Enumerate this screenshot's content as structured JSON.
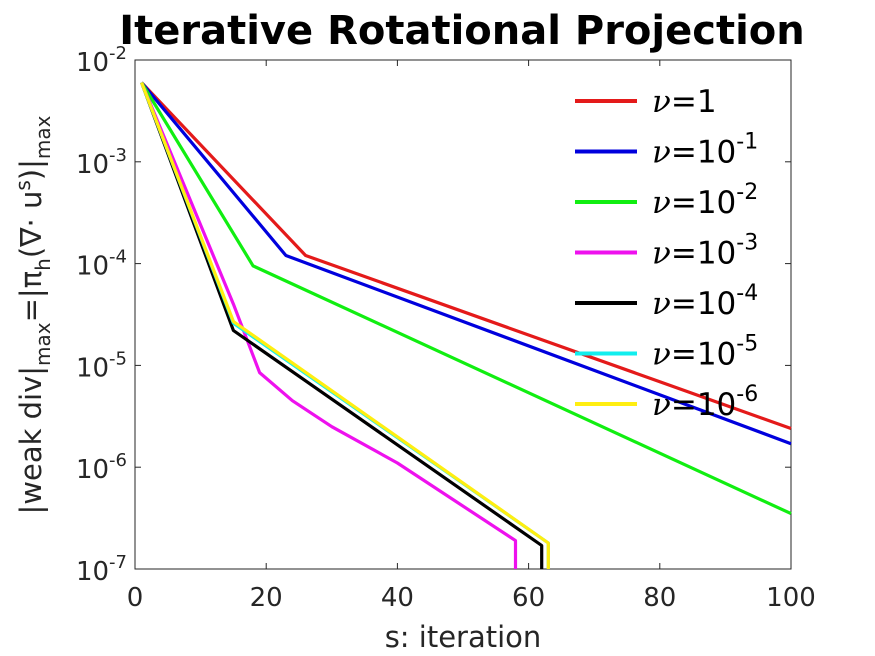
{
  "chart_data": {
    "type": "line",
    "title": "Iterative Rotational Projection",
    "xlabel": "s: iteration",
    "ylabel": {
      "main": "|weak div|",
      "sub1": "max",
      "mid": "=|π",
      "sub2": "h",
      "paren": "(∇· u",
      "sup": "s",
      "close": ")|",
      "sub3": "max"
    },
    "xlim": [
      0,
      100
    ],
    "ylim_exponent": [
      -7,
      -2
    ],
    "yscale": "log",
    "x_ticks": [
      "0",
      "20",
      "40",
      "60",
      "80",
      "100"
    ],
    "x_tick_values": [
      0,
      20,
      40,
      60,
      80,
      100
    ],
    "y_tick_base": "10",
    "y_tick_exponents": [
      "-7",
      "-6",
      "-5",
      "-4",
      "-3",
      "-2"
    ],
    "y_tick_values": [
      -7,
      -6,
      -5,
      -4,
      -3,
      -2
    ],
    "legend_position": "top-right",
    "series": [
      {
        "name": "ν=1",
        "symbol": "ν",
        "base": "=1",
        "exp": "",
        "color": "#e41a1a",
        "x": [
          1,
          26,
          100
        ],
        "y": [
          0.006,
          0.00012,
          2.4e-06
        ]
      },
      {
        "name": "ν=10^-1",
        "symbol": "ν",
        "base": "=10",
        "exp": "-1",
        "color": "#0000dd",
        "x": [
          1,
          23,
          100
        ],
        "y": [
          0.006,
          0.00012,
          1.7e-06
        ]
      },
      {
        "name": "ν=10^-2",
        "symbol": "ν",
        "base": "=10",
        "exp": "-2",
        "color": "#11ee11",
        "x": [
          1,
          18,
          100
        ],
        "y": [
          0.006,
          9.5e-05,
          3.5e-07
        ]
      },
      {
        "name": "ν=10^-3",
        "symbol": "ν",
        "base": "=10",
        "exp": "-3",
        "color": "#ee11ee",
        "x": [
          1,
          15,
          19,
          24,
          30,
          40,
          58,
          58
        ],
        "y": [
          0.006,
          4e-05,
          8.5e-06,
          4.5e-06,
          2.5e-06,
          1.1e-06,
          1.9e-07,
          1e-07
        ]
      },
      {
        "name": "ν=10^-4",
        "symbol": "ν",
        "base": "=10",
        "exp": "-4",
        "color": "#000000",
        "x": [
          1,
          15,
          62,
          62
        ],
        "y": [
          0.006,
          2.2e-05,
          1.7e-07,
          1e-07
        ]
      },
      {
        "name": "ν=10^-5",
        "symbol": "ν",
        "base": "=10",
        "exp": "-5",
        "color": "#11eeee",
        "x": [
          1,
          15,
          63,
          63
        ],
        "y": [
          0.006,
          2.6e-05,
          1.8e-07,
          1e-07
        ]
      },
      {
        "name": "ν=10^-6",
        "symbol": "ν",
        "base": "=10",
        "exp": "-6",
        "color": "#ffee11",
        "x": [
          1,
          15,
          63,
          63
        ],
        "y": [
          0.006,
          2.7e-05,
          1.8e-07,
          1e-07
        ]
      }
    ]
  }
}
